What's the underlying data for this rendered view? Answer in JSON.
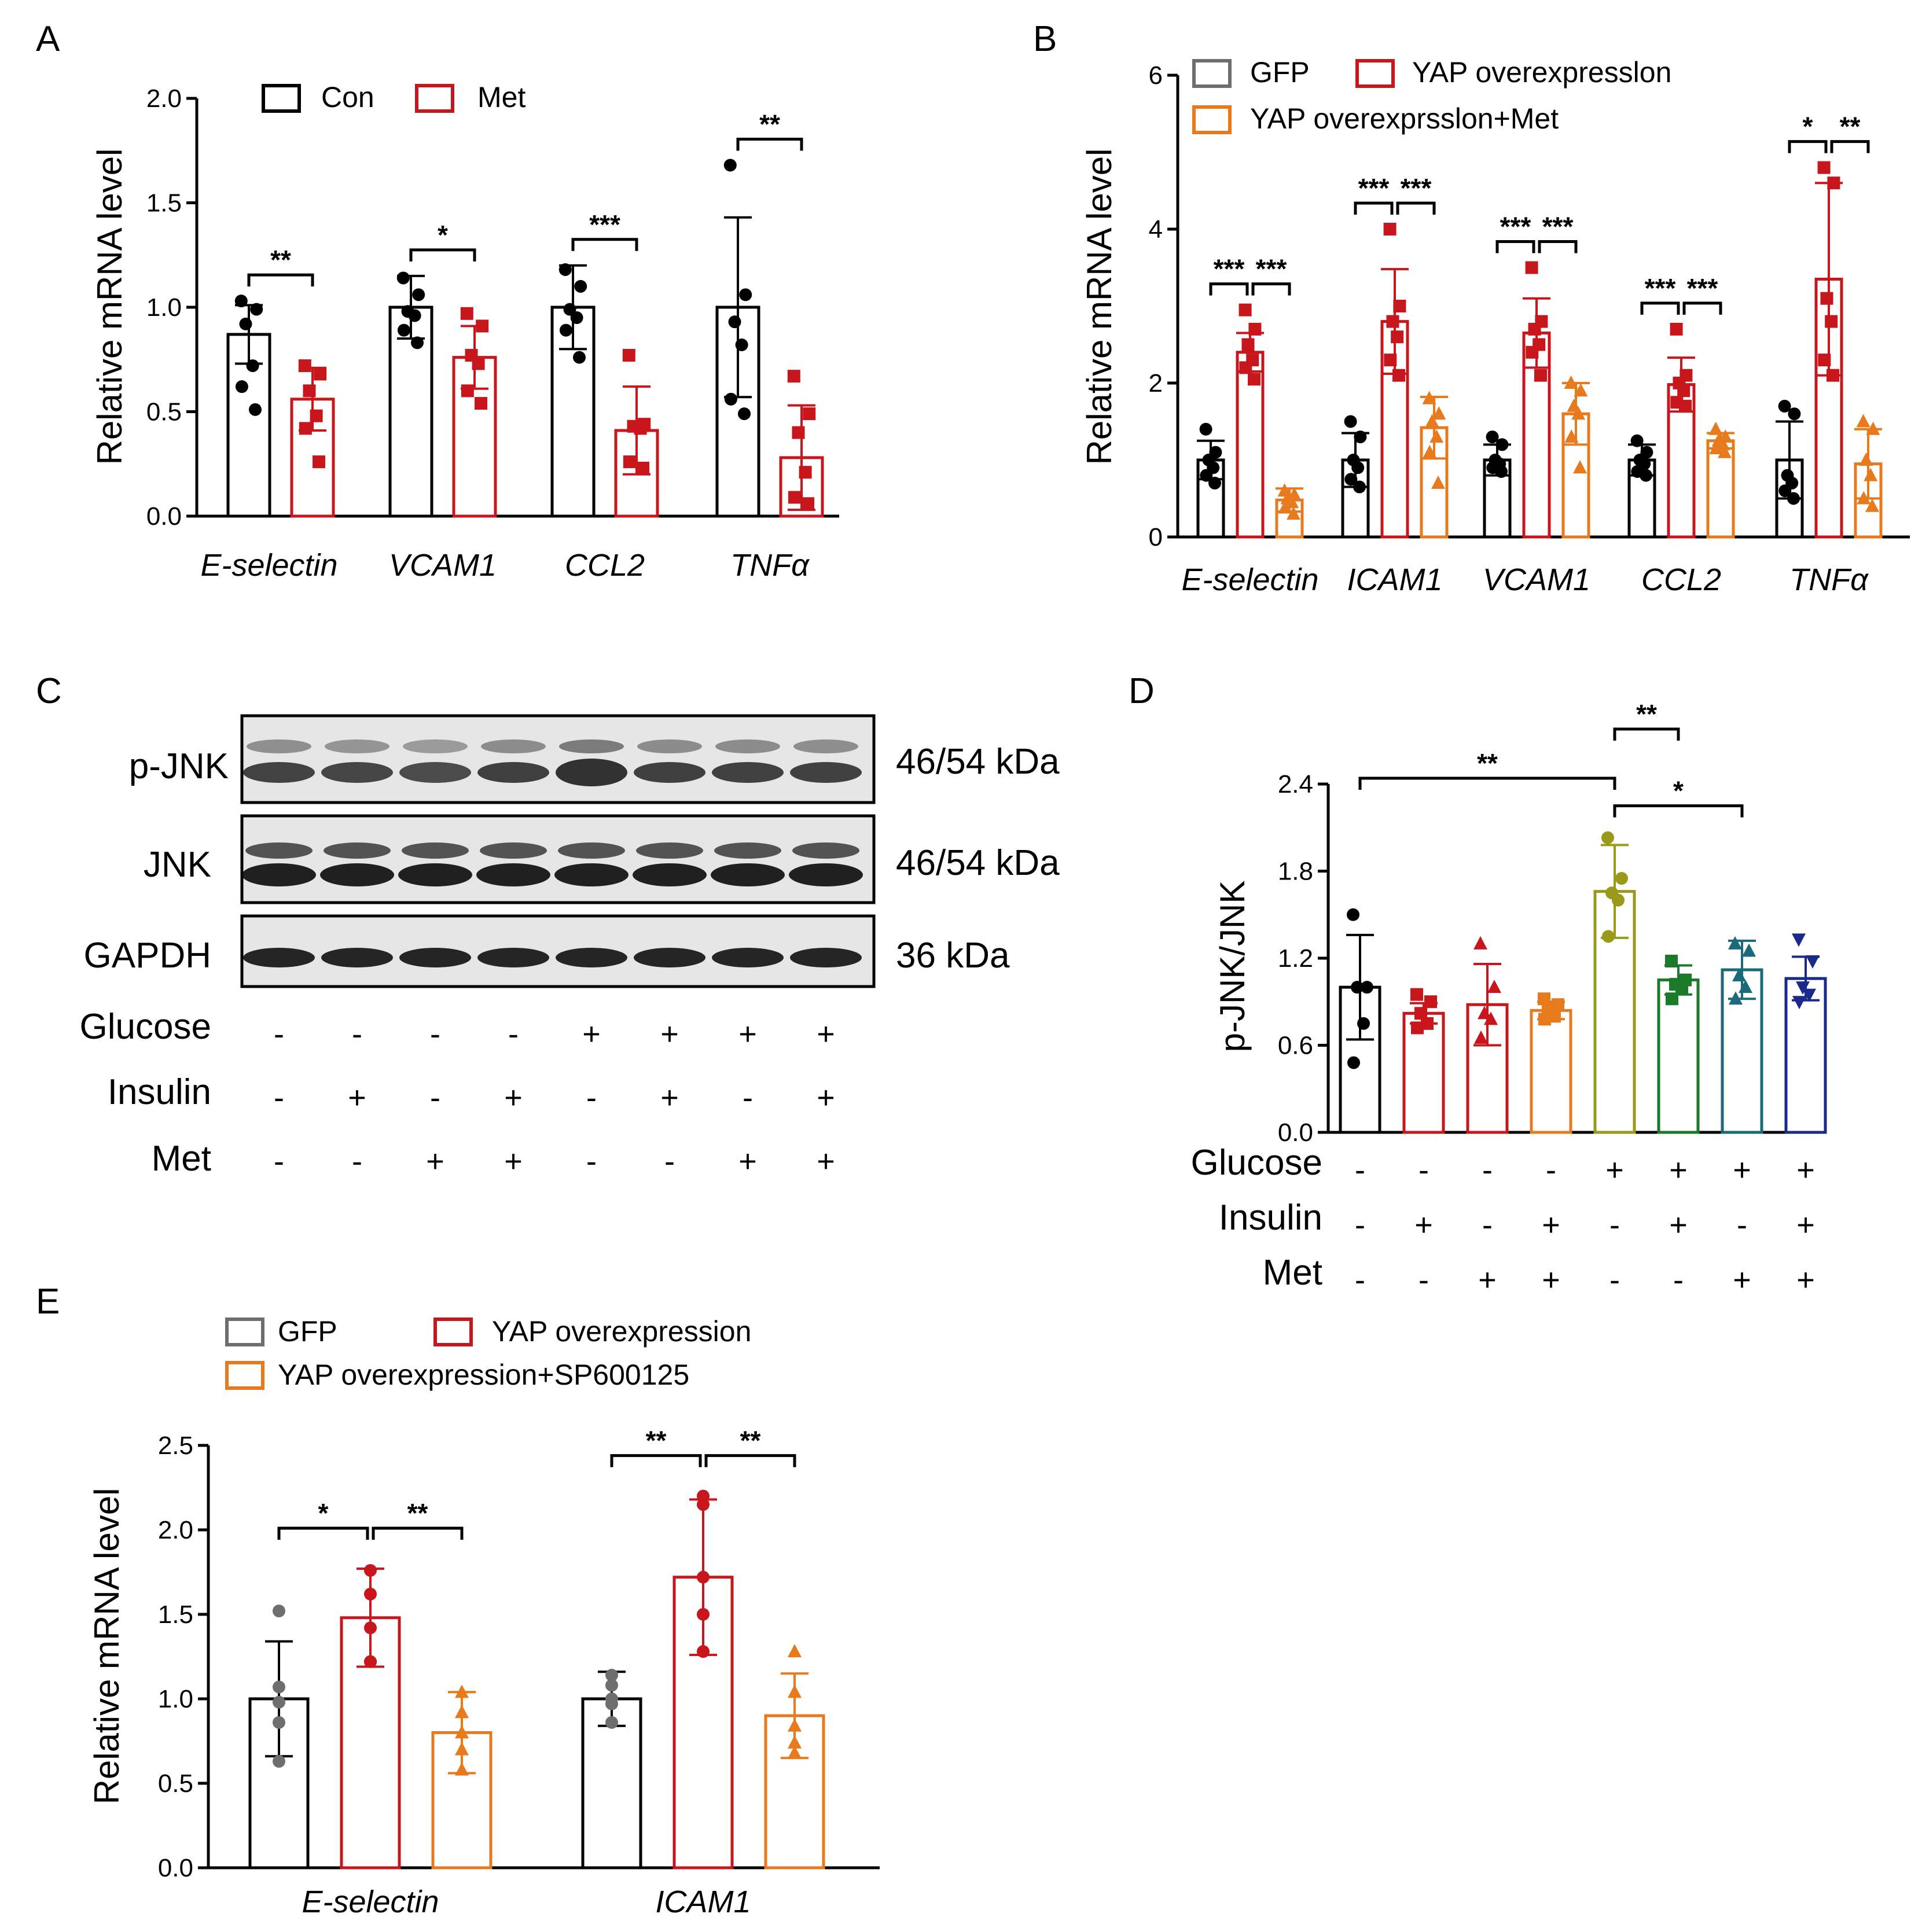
{
  "chart_data": [
    {
      "id": "A",
      "type": "bar",
      "panel_label": "A",
      "ylabel": "Relative mRNA level",
      "ylim": [
        0,
        2.0
      ],
      "yticks": [
        "0.0",
        "0.5",
        "1.0",
        "1.5",
        "2.0"
      ],
      "legend": [
        "Con",
        "Met"
      ],
      "colors": [
        "#000000",
        "#c8161d"
      ],
      "categories": [
        "E-selectin",
        "VCAM1",
        "CCL2",
        "TNFα"
      ],
      "series": [
        {
          "name": "Con",
          "values": [
            0.87,
            1.0,
            1.0,
            1.0
          ],
          "errors": [
            0.14,
            0.15,
            0.2,
            0.43
          ],
          "points": [
            [
              1.03,
              0.99,
              0.92,
              0.72,
              0.62,
              0.51
            ],
            [
              1.14,
              1.06,
              0.98,
              0.96,
              0.89,
              0.83
            ],
            [
              1.18,
              1.1,
              0.99,
              0.95,
              0.89,
              0.76
            ],
            [
              1.68,
              1.06,
              0.93,
              0.82,
              0.56,
              0.49
            ]
          ]
        },
        {
          "name": "Met",
          "values": [
            0.56,
            0.76,
            0.41,
            0.28
          ],
          "errors": [
            0.15,
            0.15,
            0.21,
            0.25
          ],
          "points": [
            [
              0.72,
              0.68,
              0.6,
              0.48,
              0.42,
              0.26
            ],
            [
              0.97,
              0.91,
              0.77,
              0.73,
              0.6,
              0.54
            ],
            [
              0.77,
              0.44,
              0.43,
              0.42,
              0.26,
              0.23
            ],
            [
              0.67,
              0.49,
              0.4,
              0.21,
              0.09,
              0.06
            ]
          ]
        }
      ],
      "significance": [
        "**",
        "*",
        "***",
        "**"
      ]
    },
    {
      "id": "B",
      "type": "bar",
      "panel_label": "B",
      "ylabel": "Relative mRNA level",
      "ylim": [
        0,
        6
      ],
      "yticks": [
        "0",
        "2",
        "4",
        "6"
      ],
      "legend": [
        "GFP",
        "YAP overexpresslon",
        "YAP overexprsslon+Met"
      ],
      "colors": [
        "#000000",
        "#c8161d",
        "#e87a1e"
      ],
      "categories": [
        "E-selectin",
        "ICAM1",
        "VCAM1",
        "CCL2",
        "TNFα"
      ],
      "series": [
        {
          "name": "GFP",
          "values": [
            1.0,
            1.0,
            1.0,
            1.0,
            1.0
          ],
          "errors": [
            0.25,
            0.35,
            0.2,
            0.2,
            0.5
          ],
          "points": [
            [
              1.4,
              1.1,
              1.0,
              0.9,
              0.8,
              0.7
            ],
            [
              1.5,
              1.3,
              1.0,
              0.9,
              0.75,
              0.65
            ],
            [
              1.3,
              1.2,
              1.0,
              0.95,
              0.9,
              0.85
            ],
            [
              1.25,
              1.1,
              1.0,
              0.95,
              0.85,
              0.8
            ],
            [
              1.7,
              1.6,
              0.8,
              0.7,
              0.6,
              0.5
            ]
          ]
        },
        {
          "name": "YAP overexpresslon",
          "values": [
            2.4,
            2.8,
            2.65,
            1.98,
            3.35
          ],
          "errors": [
            0.25,
            0.68,
            0.45,
            0.35,
            1.25
          ],
          "points": [
            [
              2.95,
              2.7,
              2.5,
              2.3,
              2.2,
              2.05
            ],
            [
              4.0,
              3.0,
              2.8,
              2.6,
              2.3,
              2.1
            ],
            [
              3.5,
              2.8,
              2.7,
              2.5,
              2.4,
              2.1
            ],
            [
              2.7,
              2.1,
              2.0,
              1.9,
              1.75,
              1.7
            ],
            [
              4.8,
              4.6,
              3.1,
              2.8,
              2.3,
              2.1
            ]
          ]
        },
        {
          "name": "YAP overexprsslon+Met",
          "values": [
            0.48,
            1.42,
            1.6,
            1.25,
            0.95
          ],
          "errors": [
            0.15,
            0.4,
            0.4,
            0.1,
            0.45
          ],
          "points": [
            [
              0.6,
              0.55,
              0.5,
              0.45,
              0.38,
              0.3
            ],
            [
              1.8,
              1.6,
              1.5,
              1.3,
              1.1,
              0.7
            ],
            [
              2.0,
              1.9,
              1.7,
              1.6,
              1.3,
              0.9
            ],
            [
              1.4,
              1.3,
              1.25,
              1.2,
              1.15,
              1.1
            ],
            [
              1.5,
              1.4,
              1.0,
              0.8,
              0.5,
              0.4
            ]
          ]
        }
      ],
      "significance": [
        [
          "***",
          "***"
        ],
        [
          "***",
          "***"
        ],
        [
          "***",
          "***"
        ],
        [
          "***",
          "***"
        ],
        [
          "*",
          "**"
        ]
      ]
    },
    {
      "id": "D",
      "type": "bar",
      "panel_label": "D",
      "ylabel": "p-JNK/JNK",
      "ylim": [
        0,
        2.4
      ],
      "yticks": [
        "0.0",
        "0.6",
        "1.2",
        "1.8",
        "2.4"
      ],
      "colors": [
        "#000000",
        "#c8161d",
        "#c8161d",
        "#e87a1e",
        "#9a9a1a",
        "#1a7a2a",
        "#1a6a7a",
        "#1a2a8a"
      ],
      "markers": [
        "circle",
        "square",
        "triangle",
        "square",
        "circle",
        "square",
        "triangle",
        "triangle-down"
      ],
      "values": [
        1.0,
        0.82,
        0.88,
        0.84,
        1.66,
        1.05,
        1.12,
        1.06
      ],
      "errors": [
        0.36,
        0.07,
        0.28,
        0.06,
        0.32,
        0.1,
        0.2,
        0.15
      ],
      "points": [
        [
          1.5,
          1.0,
          1.0,
          0.75,
          0.48
        ],
        [
          0.95,
          0.9,
          0.82,
          0.75,
          0.72
        ],
        [
          1.3,
          1.0,
          0.82,
          0.78,
          0.65
        ],
        [
          0.92,
          0.88,
          0.84,
          0.8,
          0.78
        ],
        [
          2.03,
          1.75,
          1.65,
          1.6,
          1.35
        ],
        [
          1.18,
          1.05,
          1.02,
          1.0,
          0.92
        ],
        [
          1.3,
          1.25,
          1.08,
          1.0,
          0.92
        ],
        [
          1.33,
          1.18,
          1.0,
          0.95,
          0.9
        ]
      ],
      "significance": [
        {
          "from": 0,
          "to": 4,
          "label": "**"
        },
        {
          "from": 4,
          "to": 5,
          "label": "**"
        },
        {
          "from": 4,
          "to": 6,
          "label": "*"
        }
      ],
      "conditions": {
        "Glucose": [
          "-",
          "-",
          "-",
          "-",
          "+",
          "+",
          "+",
          "+"
        ],
        "Insulin": [
          "-",
          "+",
          "-",
          "+",
          "-",
          "+",
          "-",
          "+"
        ],
        "Met": [
          "-",
          "-",
          "+",
          "+",
          "-",
          "-",
          "+",
          "+"
        ]
      }
    },
    {
      "id": "E",
      "type": "bar",
      "panel_label": "E",
      "ylabel": "Relative mRNA level",
      "ylim": [
        0,
        2.5
      ],
      "yticks": [
        "0.0",
        "0.5",
        "1.0",
        "1.5",
        "2.0",
        "2.5"
      ],
      "legend": [
        "GFP",
        "YAP overexpression",
        "YAP overexpression+SP600125"
      ],
      "colors": [
        "#000000",
        "#c8161d",
        "#e87a1e"
      ],
      "legend_colors": [
        "#6e6e6e",
        "#c8161d",
        "#e87a1e"
      ],
      "categories": [
        "E-selectin",
        "ICAM1"
      ],
      "series": [
        {
          "name": "GFP",
          "values": [
            1.0,
            1.0
          ],
          "errors": [
            0.34,
            0.16
          ],
          "points": [
            [
              1.52,
              1.07,
              0.98,
              0.86,
              0.63
            ],
            [
              1.14,
              1.08,
              1.0,
              0.97,
              0.86
            ]
          ]
        },
        {
          "name": "YAP overexpression",
          "values": [
            1.48,
            1.72
          ],
          "errors": [
            0.29,
            0.46
          ],
          "points": [
            [
              1.76,
              1.62,
              1.42,
              1.22,
              1.22
            ],
            [
              2.2,
              2.15,
              1.72,
              1.5,
              1.28
            ]
          ]
        },
        {
          "name": "YAP overexpression+SP600125",
          "values": [
            0.8,
            0.9
          ],
          "errors": [
            0.24,
            0.25
          ],
          "points": [
            [
              1.04,
              0.92,
              0.8,
              0.7,
              0.58
            ],
            [
              1.28,
              1.04,
              0.84,
              0.74,
              0.68
            ]
          ]
        }
      ],
      "significance": [
        [
          "*",
          "**"
        ],
        [
          "**",
          "**"
        ]
      ]
    }
  ],
  "blot": {
    "panel_label": "C",
    "rows": [
      {
        "label": "p-JNK",
        "size": "46/54 kDa"
      },
      {
        "label": "JNK",
        "size": "46/54 kDa"
      },
      {
        "label": "GAPDH",
        "size": "36 kDa"
      }
    ],
    "conditions": [
      {
        "label": "Glucose",
        "values": [
          "-",
          "-",
          "-",
          "-",
          "+",
          "+",
          "+",
          "+"
        ]
      },
      {
        "label": "Insulin",
        "values": [
          "-",
          "+",
          "-",
          "+",
          "-",
          "+",
          "-",
          "+"
        ]
      },
      {
        "label": "Met",
        "values": [
          "-",
          "-",
          "+",
          "+",
          "-",
          "-",
          "+",
          "+"
        ]
      }
    ]
  }
}
